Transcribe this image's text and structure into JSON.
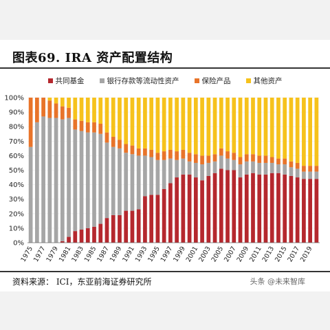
{
  "header": {
    "title": "图表69. IRA 资产配置结构"
  },
  "legend": [
    {
      "label": "共同基金",
      "color": "#b5282e",
      "icon": "square-swatch"
    },
    {
      "label": "银行存款等流动性资产",
      "color": "#a6a6a6",
      "icon": "square-swatch"
    },
    {
      "label": "保险产品",
      "color": "#e8742a",
      "icon": "square-swatch"
    },
    {
      "label": "其他资产",
      "color": "#f6c21c",
      "icon": "square-swatch"
    }
  ],
  "footer": {
    "source": "资料来源： ICI，东亚前海证券研究所"
  },
  "watermark": {
    "text": "头条 @未来智库"
  },
  "chart_data": {
    "type": "bar",
    "stacked": true,
    "ylim": [
      0,
      100
    ],
    "yticks": [
      "0%",
      "10%",
      "20%",
      "30%",
      "40%",
      "50%",
      "60%",
      "70%",
      "80%",
      "90%",
      "100%"
    ],
    "categories": [
      "1975",
      "1976",
      "1977",
      "1978",
      "1979",
      "1980",
      "1981",
      "1982",
      "1983",
      "1984",
      "1985",
      "1986",
      "1987",
      "1988",
      "1989",
      "1990",
      "1991",
      "1992",
      "1993",
      "1994",
      "1995",
      "1996",
      "1997",
      "1998",
      "1999",
      "2000",
      "2001",
      "2002",
      "2003",
      "2004",
      "2005",
      "2006",
      "2007",
      "2008",
      "2009",
      "2010",
      "2011",
      "2012",
      "2013",
      "2014",
      "2015",
      "2016",
      "2017",
      "2018",
      "2019",
      "2020"
    ],
    "xtick_labels": [
      "1975",
      "1977",
      "1979",
      "1981",
      "1983",
      "1985",
      "1987",
      "1989",
      "1991",
      "1993",
      "1995",
      "1997",
      "1999",
      "2001",
      "2003",
      "2005",
      "2007",
      "2009",
      "2011",
      "2013",
      "2015",
      "2017",
      "2019"
    ],
    "series": [
      {
        "name": "共同基金",
        "color": "#b5282e",
        "values": [
          0,
          0,
          0,
          0,
          0,
          1,
          4,
          8,
          9,
          10,
          11,
          13,
          17,
          19,
          19,
          22,
          22,
          23,
          32,
          33,
          33,
          37,
          41,
          45,
          47,
          47,
          45,
          43,
          46,
          48,
          51,
          50,
          50,
          45,
          47,
          48,
          47,
          47,
          48,
          48,
          47,
          46,
          45,
          44,
          44,
          44
        ]
      },
      {
        "name": "银行存款等流动性资产",
        "color": "#a6a6a6",
        "values": [
          66,
          83,
          87,
          86,
          86,
          84,
          82,
          70,
          68,
          66,
          65,
          62,
          52,
          47,
          46,
          40,
          39,
          37,
          28,
          26,
          24,
          20,
          17,
          12,
          11,
          9,
          10,
          11,
          9,
          8,
          9,
          8,
          7,
          9,
          9,
          8,
          8,
          8,
          7,
          6,
          7,
          6,
          6,
          5,
          5,
          5
        ]
      },
      {
        "name": "保险产品",
        "color": "#e8742a",
        "values": [
          34,
          17,
          13,
          12,
          10,
          9,
          7,
          7,
          7,
          7,
          7,
          7,
          7,
          7,
          6,
          6,
          6,
          5,
          5,
          5,
          5,
          6,
          6,
          6,
          6,
          6,
          6,
          6,
          5,
          5,
          5,
          5,
          5,
          5,
          5,
          5,
          5,
          5,
          4,
          4,
          4,
          4,
          4,
          4,
          4,
          4
        ]
      },
      {
        "name": "其他资产",
        "color": "#f6c21c",
        "values": [
          0,
          0,
          0,
          2,
          4,
          6,
          7,
          15,
          16,
          17,
          17,
          18,
          24,
          27,
          29,
          32,
          33,
          35,
          35,
          36,
          38,
          37,
          36,
          37,
          36,
          38,
          39,
          40,
          40,
          39,
          35,
          37,
          38,
          41,
          39,
          39,
          40,
          40,
          41,
          42,
          42,
          44,
          45,
          47,
          47,
          47
        ]
      }
    ],
    "grid": true,
    "legend_position": "top-center"
  }
}
